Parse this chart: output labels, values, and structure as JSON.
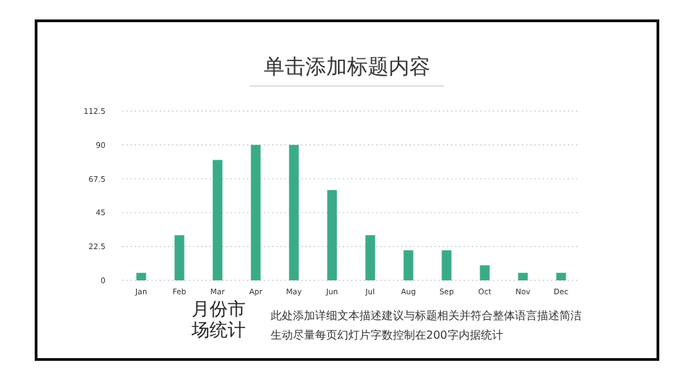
{
  "chart_data": {
    "type": "bar",
    "title": "单击添加标题内容",
    "categories": [
      "Jan",
      "Feb",
      "Mar",
      "Apr",
      "May",
      "Jun",
      "Jul",
      "Aug",
      "Sep",
      "Oct",
      "Nov",
      "Dec"
    ],
    "values": [
      5,
      30,
      80,
      90,
      90,
      60,
      30,
      20,
      20,
      10,
      5,
      5
    ],
    "color": "#3aab88",
    "ylim": [
      0,
      112.5
    ],
    "yticks": [
      0,
      22.5,
      45,
      67.5,
      90,
      112.5
    ],
    "grid": "y",
    "annotations": [
      "月份市场统计",
      "此处添加详细文本描述建议与标题相关并符合整体语言描述简洁生动尽量每页幻灯片字数控制在200字内据统计"
    ]
  }
}
